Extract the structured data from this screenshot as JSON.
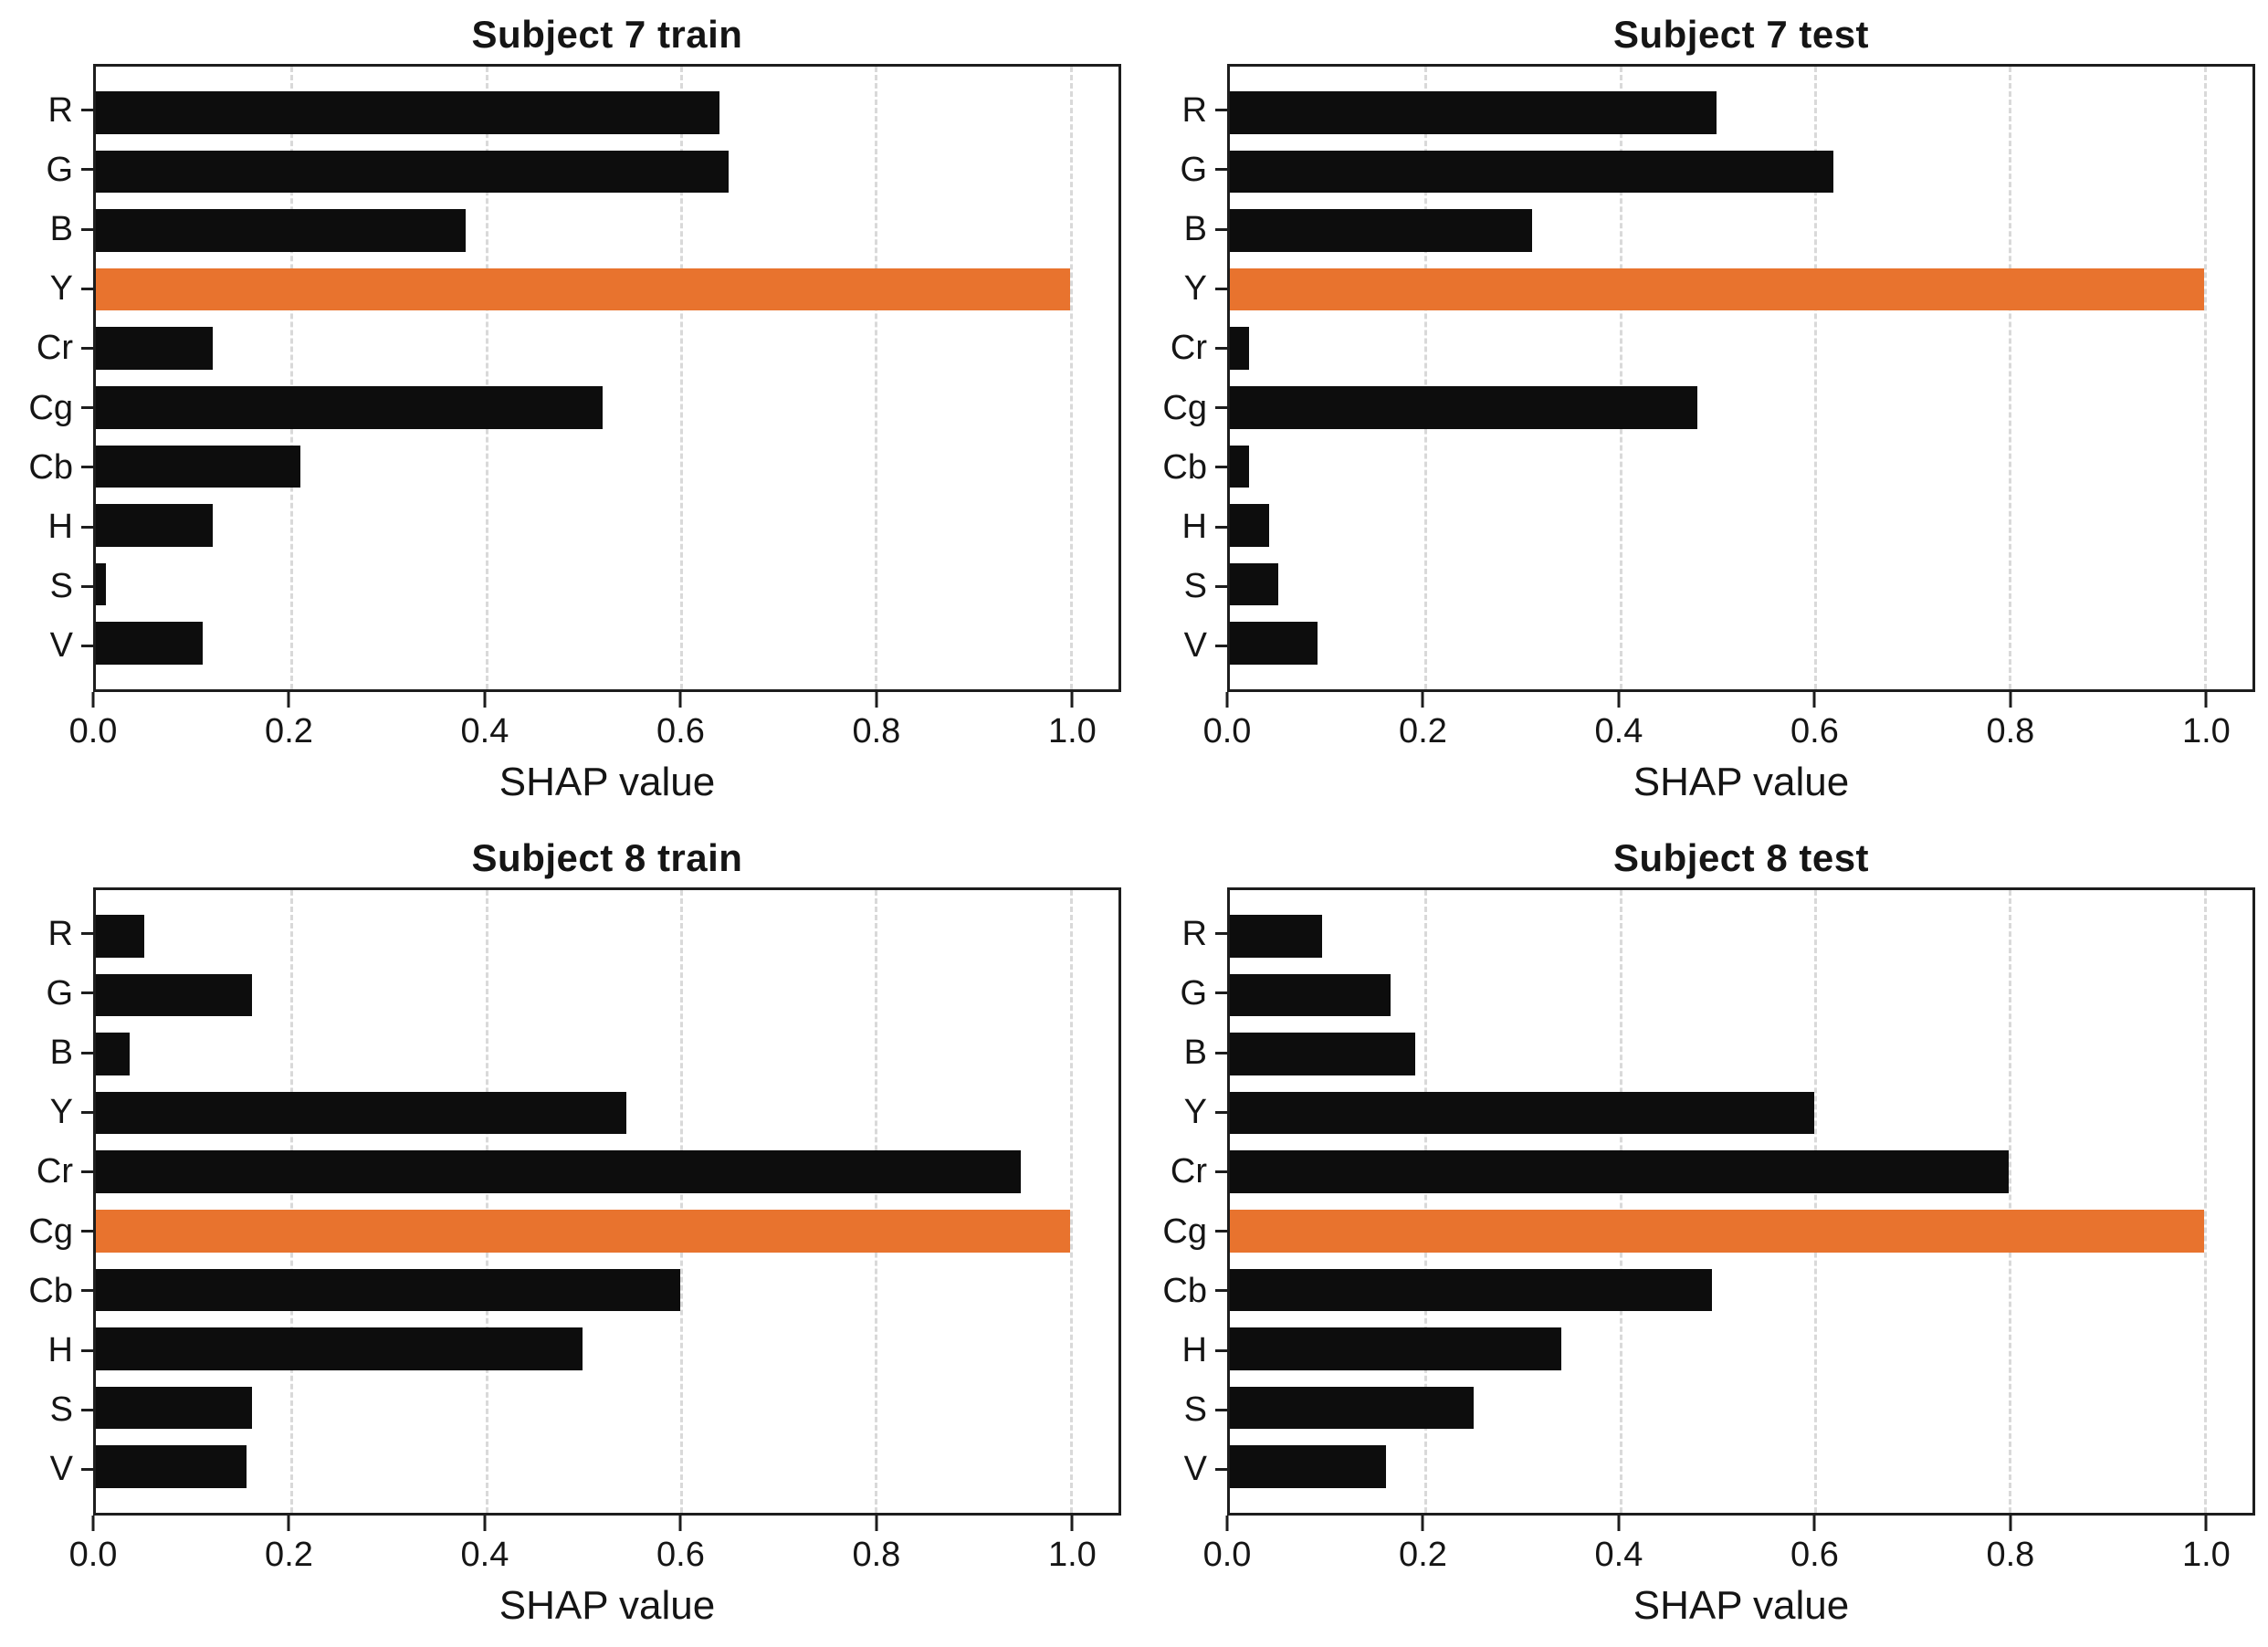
{
  "page": {
    "background": "#ffffff"
  },
  "colors": {
    "bar": "#0d0d0d",
    "highlight": "#E8732E",
    "gridline": "#d9d9d9",
    "frame": "#1d1d1d",
    "text": "#151515"
  },
  "chart_data": [
    {
      "type": "bar",
      "orientation": "horizontal",
      "title": "Subject 7 train",
      "xlabel": "SHAP value",
      "categories": [
        "R",
        "G",
        "B",
        "Y",
        "Cr",
        "Cg",
        "Cb",
        "H",
        "S",
        "V"
      ],
      "values": [
        0.64,
        0.65,
        0.38,
        1.0,
        0.12,
        0.52,
        0.21,
        0.12,
        0.01,
        0.11
      ],
      "highlight_category": "Y",
      "xlim": [
        0,
        1.05
      ],
      "xticks": [
        0.0,
        0.2,
        0.4,
        0.6,
        0.8,
        1.0
      ],
      "xtick_labels": [
        "0.0",
        "0.2",
        "0.4",
        "0.6",
        "0.8",
        "1.0"
      ],
      "grid": "vertical-dashed",
      "legend": "none"
    },
    {
      "type": "bar",
      "orientation": "horizontal",
      "title": "Subject 7 test",
      "xlabel": "SHAP value",
      "categories": [
        "R",
        "G",
        "B",
        "Y",
        "Cr",
        "Cg",
        "Cb",
        "H",
        "S",
        "V"
      ],
      "values": [
        0.5,
        0.62,
        0.31,
        1.0,
        0.02,
        0.48,
        0.02,
        0.04,
        0.05,
        0.09
      ],
      "highlight_category": "Y",
      "xlim": [
        0,
        1.05
      ],
      "xticks": [
        0.0,
        0.2,
        0.4,
        0.6,
        0.8,
        1.0
      ],
      "xtick_labels": [
        "0.0",
        "0.2",
        "0.4",
        "0.6",
        "0.8",
        "1.0"
      ],
      "grid": "vertical-dashed",
      "legend": "none"
    },
    {
      "type": "bar",
      "orientation": "horizontal",
      "title": "Subject 8 train",
      "xlabel": "SHAP value",
      "categories": [
        "R",
        "G",
        "B",
        "Y",
        "Cr",
        "Cg",
        "Cb",
        "H",
        "S",
        "V"
      ],
      "values": [
        0.05,
        0.16,
        0.035,
        0.545,
        0.95,
        1.0,
        0.6,
        0.5,
        0.16,
        0.155
      ],
      "highlight_category": "Cg",
      "xlim": [
        0,
        1.05
      ],
      "xticks": [
        0.0,
        0.2,
        0.4,
        0.6,
        0.8,
        1.0
      ],
      "xtick_labels": [
        "0.0",
        "0.2",
        "0.4",
        "0.6",
        "0.8",
        "1.0"
      ],
      "grid": "vertical-dashed",
      "legend": "none"
    },
    {
      "type": "bar",
      "orientation": "horizontal",
      "title": "Subject 8 test",
      "xlabel": "SHAP value",
      "categories": [
        "R",
        "G",
        "B",
        "Y",
        "Cr",
        "Cg",
        "Cb",
        "H",
        "S",
        "V"
      ],
      "values": [
        0.095,
        0.165,
        0.19,
        0.6,
        0.8,
        1.0,
        0.495,
        0.34,
        0.25,
        0.16
      ],
      "highlight_category": "Cg",
      "xlim": [
        0,
        1.05
      ],
      "xticks": [
        0.0,
        0.2,
        0.4,
        0.6,
        0.8,
        1.0
      ],
      "xtick_labels": [
        "0.0",
        "0.2",
        "0.4",
        "0.6",
        "0.8",
        "1.0"
      ],
      "grid": "vertical-dashed",
      "legend": "none"
    }
  ]
}
